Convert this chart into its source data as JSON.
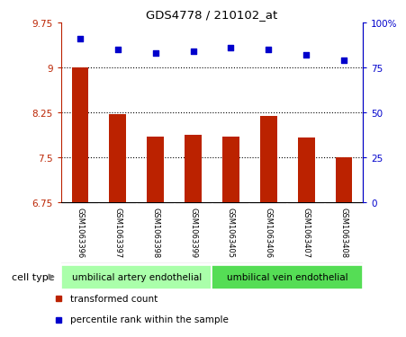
{
  "title": "GDS4778 / 210102_at",
  "samples": [
    "GSM1063396",
    "GSM1063397",
    "GSM1063398",
    "GSM1063399",
    "GSM1063405",
    "GSM1063406",
    "GSM1063407",
    "GSM1063408"
  ],
  "transformed_count": [
    9.0,
    8.22,
    7.84,
    7.88,
    7.85,
    8.19,
    7.83,
    7.5
  ],
  "percentile_rank": [
    91,
    85,
    83,
    84,
    86,
    85,
    82,
    79
  ],
  "bar_color": "#bb2200",
  "dot_color": "#0000cc",
  "ylim_left": [
    6.75,
    9.75
  ],
  "ylim_right": [
    0,
    100
  ],
  "yticks_left": [
    6.75,
    7.5,
    8.25,
    9.0,
    9.75
  ],
  "yticks_right": [
    0,
    25,
    50,
    75,
    100
  ],
  "ytick_labels_left": [
    "6.75",
    "7.5",
    "8.25",
    "9",
    "9.75"
  ],
  "ytick_labels_right": [
    "0",
    "25",
    "50",
    "75",
    "100%"
  ],
  "hlines": [
    7.5,
    8.25,
    9.0
  ],
  "cell_types": [
    {
      "label": "umbilical artery endothelial",
      "start": 0,
      "end": 4,
      "color": "#aaffaa"
    },
    {
      "label": "umbilical vein endothelial",
      "start": 4,
      "end": 8,
      "color": "#55dd55"
    }
  ],
  "legend_items": [
    {
      "color": "#bb2200",
      "marker": "s",
      "label": "transformed count"
    },
    {
      "color": "#0000cc",
      "marker": "s",
      "label": "percentile rank within the sample"
    }
  ],
  "cell_type_label": "cell type",
  "background_color": "#ffffff",
  "plot_bg_color": "#ffffff",
  "sample_label_bg_color": "#c8c8c8",
  "bar_width": 0.45
}
